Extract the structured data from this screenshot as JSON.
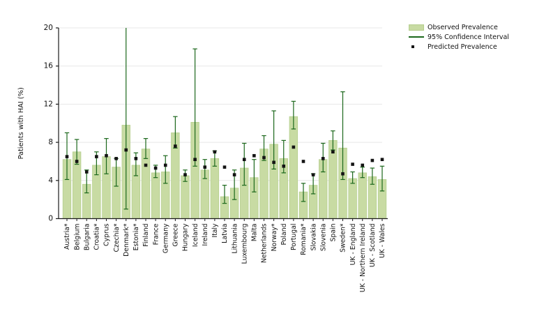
{
  "figure": {
    "ylabel": "Patients with HAI (%)"
  },
  "legend": {
    "items": [
      {
        "label": "Observed Prevalence",
        "swatch": "box",
        "color": "#c8dba3"
      },
      {
        "label": "95% Confidence Interval",
        "swatch": "line",
        "color": "#1b671b"
      },
      {
        "label": "Predicted Prevalence",
        "swatch": "square",
        "color": "#141414"
      }
    ]
  },
  "colors": {
    "bar_fill": "#c8dba3",
    "bar_edge": "#b5cf8d",
    "ci_line": "#1b671b",
    "marker": "#141414",
    "grid": "#e7e7e7",
    "axis": "#1a1a1a"
  },
  "chart_data": {
    "type": "bar",
    "title": "",
    "xlabel": "",
    "ylabel": "Patients with HAI (%)",
    "ylim": [
      0,
      20
    ],
    "yticks": [
      0,
      4,
      8,
      12,
      16,
      20
    ],
    "grid": true,
    "legend_position": "top-right",
    "categories": [
      "Austria*",
      "Belgium",
      "Bulgaria",
      "Croatia*",
      "Cyprus",
      "Czechia*",
      "Denmark*",
      "Estonia*",
      "Finland",
      "France",
      "Germany",
      "Greece",
      "Hungary",
      "Iceland",
      "Ireland",
      "Italy",
      "Latvia",
      "Lithuania",
      "Luxembourg",
      "Malta",
      "Netherlands",
      "Norway*",
      "Poland",
      "Portugal",
      "Romania*",
      "Slovakia",
      "Slovenia",
      "Spain",
      "Sweden*",
      "UK - England",
      "UK - Northern Ireland",
      "UK - Scotland",
      "UK - Wales"
    ],
    "series": [
      {
        "name": "Observed Prevalence",
        "type": "bar",
        "values": [
          6.2,
          7.0,
          3.6,
          5.6,
          6.5,
          5.4,
          9.8,
          5.6,
          7.3,
          4.8,
          4.9,
          9.0,
          4.5,
          10.1,
          5.1,
          6.3,
          2.3,
          3.2,
          5.3,
          4.3,
          7.3,
          7.8,
          6.3,
          10.7,
          2.8,
          3.5,
          6.2,
          8.2,
          7.4,
          4.2,
          4.8,
          4.4,
          4.1
        ]
      },
      {
        "name": "95% Confidence Interval",
        "type": "errorbar",
        "low": [
          4.1,
          5.7,
          2.7,
          4.6,
          4.7,
          3.4,
          1.0,
          4.5,
          6.3,
          4.3,
          3.7,
          7.4,
          3.9,
          5.5,
          4.2,
          5.5,
          1.6,
          2.0,
          3.5,
          2.8,
          6.1,
          5.2,
          4.8,
          9.4,
          1.8,
          2.6,
          4.9,
          7.2,
          4.1,
          3.7,
          4.3,
          3.6,
          2.9
        ],
        "high": [
          9.0,
          8.3,
          5.1,
          7.0,
          8.4,
          6.3,
          20.0,
          6.9,
          8.4,
          5.6,
          6.6,
          10.7,
          5.1,
          17.8,
          6.2,
          7.1,
          3.5,
          5.1,
          7.9,
          6.2,
          8.7,
          11.3,
          8.2,
          12.3,
          3.7,
          4.7,
          7.9,
          9.2,
          13.3,
          4.9,
          5.4,
          5.3,
          5.5
        ]
      },
      {
        "name": "Predicted Prevalence",
        "type": "point-square",
        "values": [
          6.5,
          6.0,
          4.9,
          6.5,
          6.6,
          6.3,
          7.2,
          6.3,
          5.6,
          5.3,
          5.6,
          7.6,
          4.6,
          6.2,
          5.4,
          7.0,
          5.4,
          4.6,
          6.2,
          6.6,
          6.4,
          5.9,
          5.5,
          7.5,
          6.0,
          4.6,
          6.3,
          7.0,
          4.7,
          5.7,
          5.6,
          6.1,
          6.2
        ]
      }
    ]
  }
}
